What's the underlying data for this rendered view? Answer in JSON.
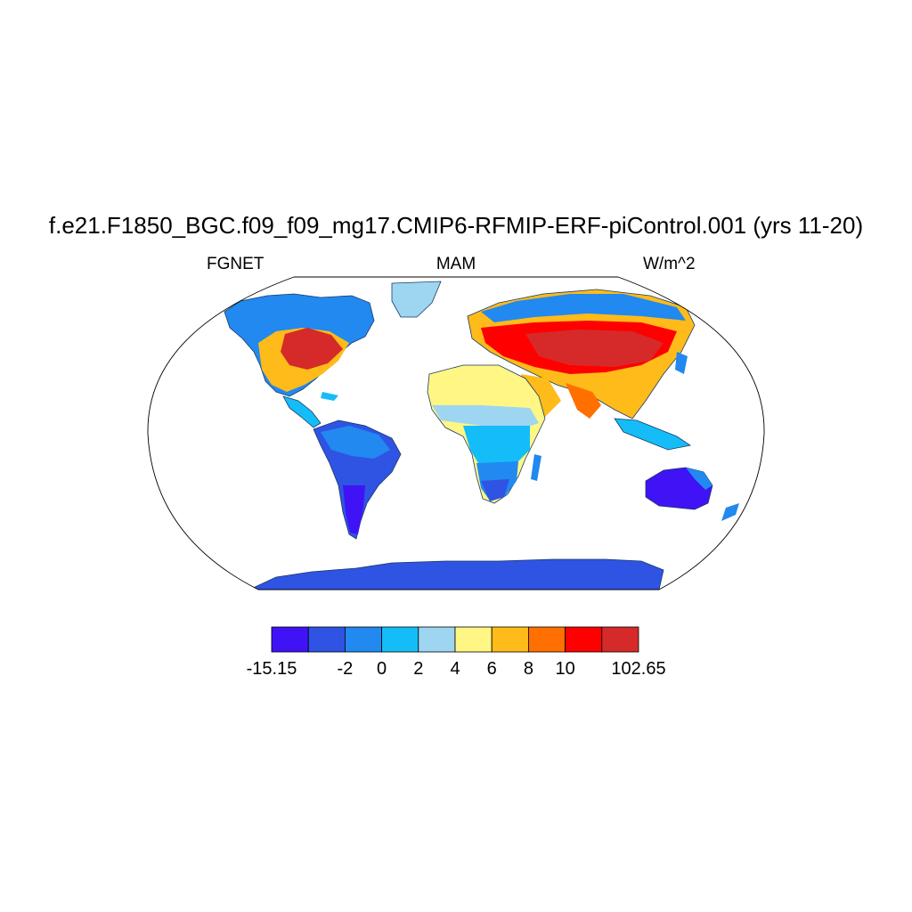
{
  "title": "f.e21.F1850_BGC.f09_f09_mg17.CMIP6-RFMIP-ERF-piControl.001 (yrs 11-20)",
  "left_label": "FGNET",
  "center_label": "MAM",
  "right_label": "W/m^2",
  "colorbar": {
    "colors": [
      "#3f13f5",
      "#2f53e3",
      "#2189f0",
      "#15bdf8",
      "#9ed6f1",
      "#fff684",
      "#ffbb19",
      "#ff7000",
      "#ff0000",
      "#d62a2a"
    ],
    "labels": [
      {
        "text": "-15.15",
        "index": 0
      },
      {
        "text": "-2",
        "index": 2
      },
      {
        "text": "0",
        "index": 3
      },
      {
        "text": "2",
        "index": 4
      },
      {
        "text": "4",
        "index": 5
      },
      {
        "text": "6",
        "index": 6
      },
      {
        "text": "8",
        "index": 7
      },
      {
        "text": "10",
        "index": 8
      },
      {
        "text": "102.65",
        "index": 10
      }
    ]
  }
}
